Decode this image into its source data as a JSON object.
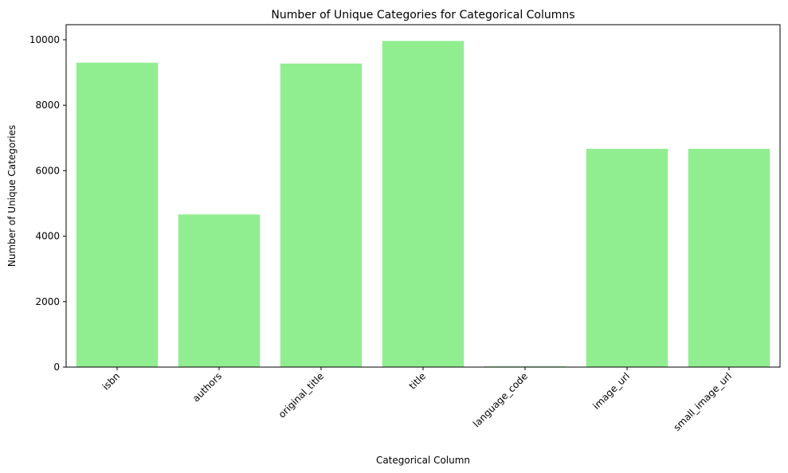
{
  "chart_data": {
    "type": "bar",
    "title": "Number of Unique Categories for Categorical Columns",
    "xlabel": "Categorical Column",
    "ylabel": "Number of Unique Categories",
    "categories": [
      "isbn",
      "authors",
      "original_title",
      "title",
      "language_code",
      "image_url",
      "small_image_url"
    ],
    "values": [
      9300,
      4664,
      9274,
      9964,
      25,
      6669,
      6669
    ],
    "ylim": [
      0,
      10461
    ],
    "yticks": [
      0,
      2000,
      4000,
      6000,
      8000,
      10000
    ],
    "bar_color": "#90ee90",
    "grid": false,
    "legend": "none"
  }
}
